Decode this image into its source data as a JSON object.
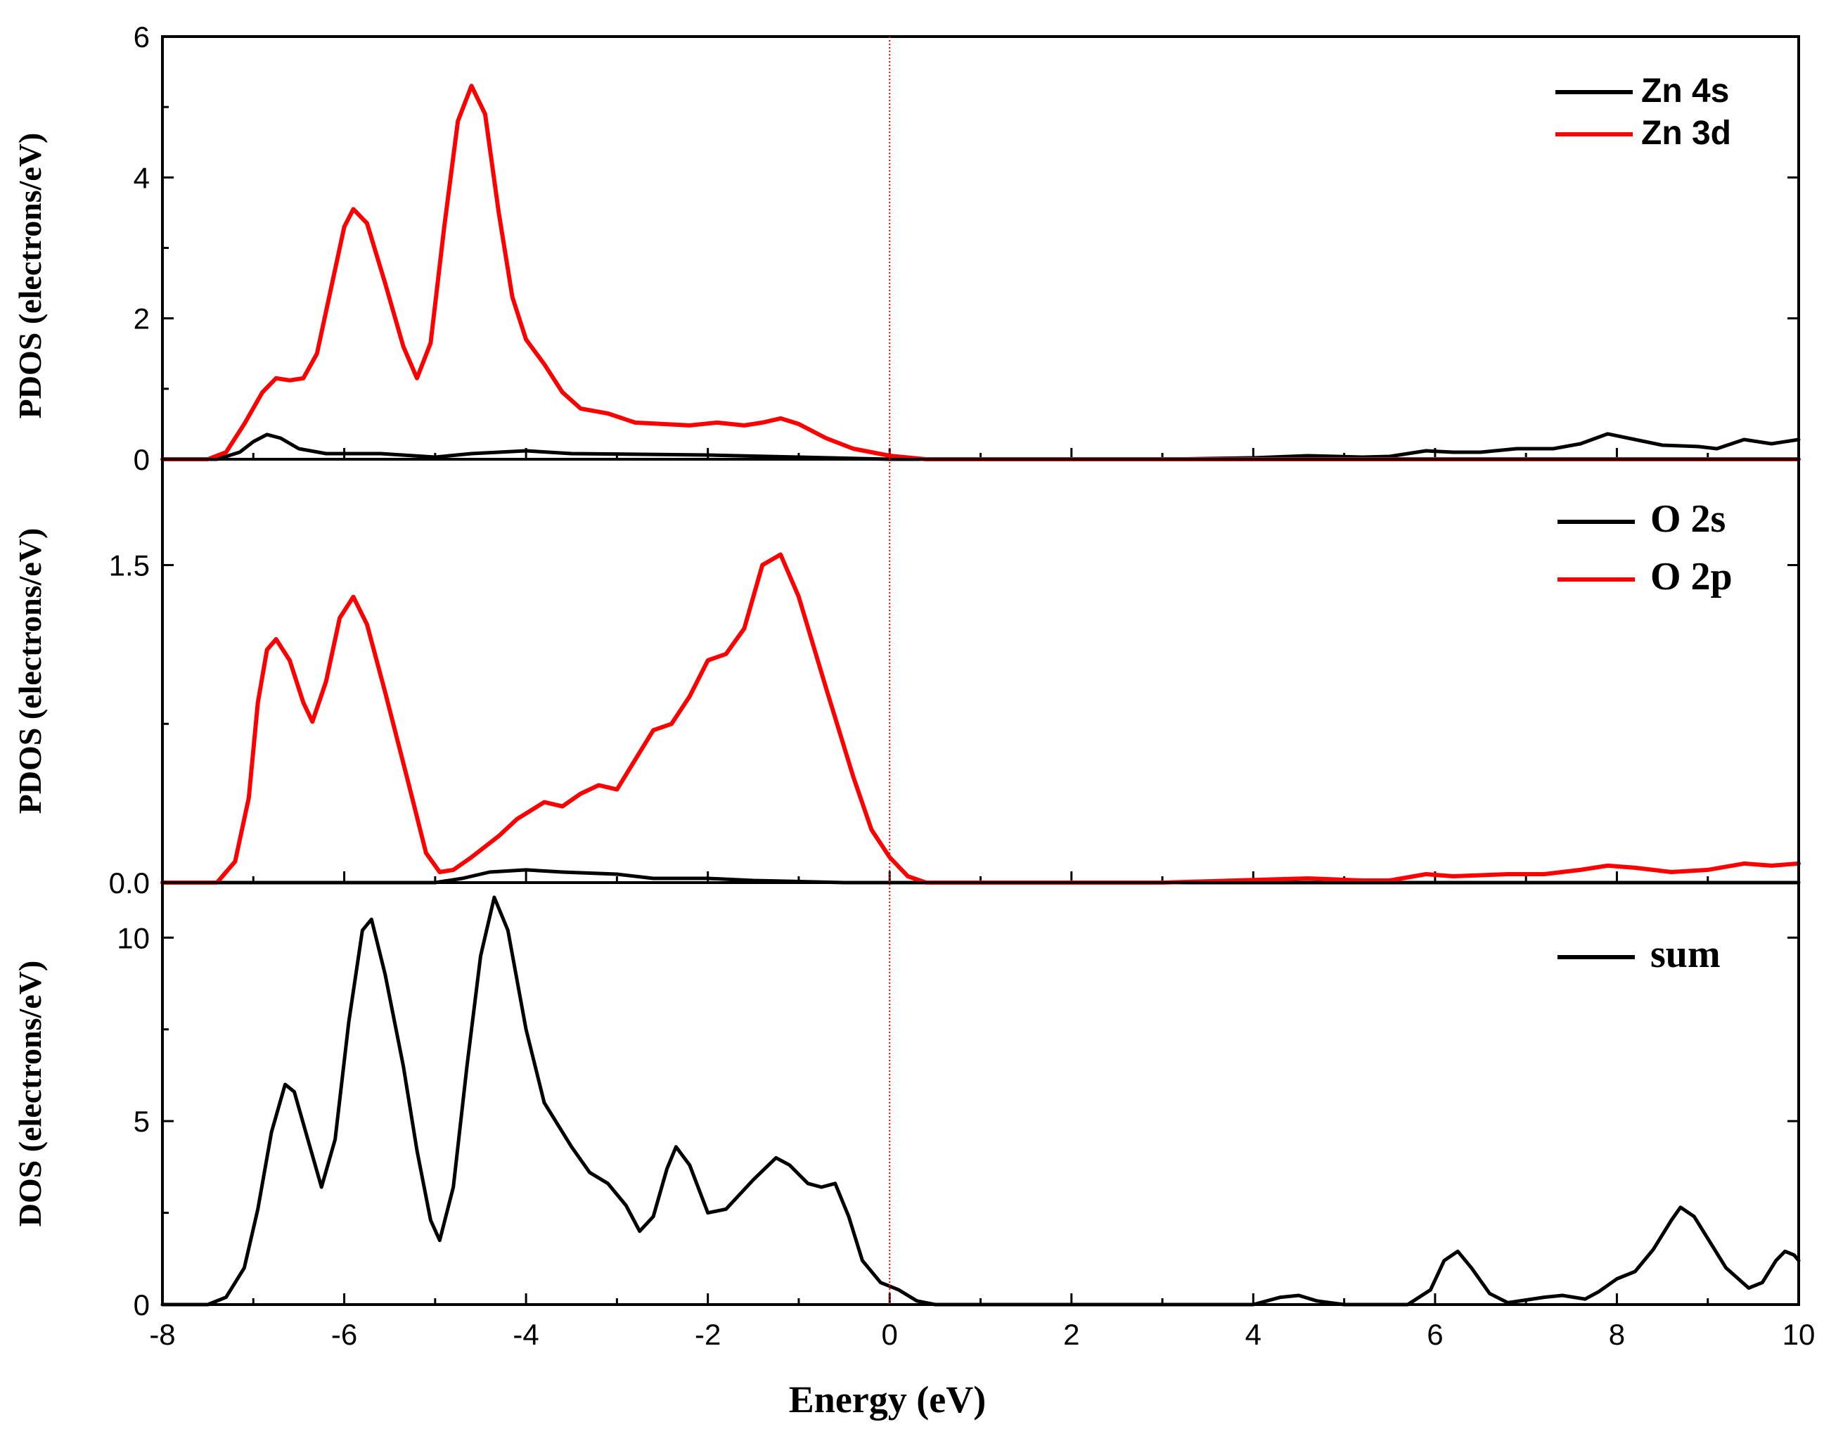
{
  "chart_data": [
    {
      "type": "line",
      "panel": "top",
      "ylabel": "PDOS (electrons/eV)",
      "xlim": [
        -8,
        10
      ],
      "ylim": [
        0,
        6
      ],
      "yticks": [
        0,
        2,
        4,
        6
      ],
      "ytick_labels": [
        "0",
        "2",
        "4",
        "6"
      ],
      "legend_position": "top-right",
      "series": [
        {
          "name": "Zn 4s",
          "color": "#000000",
          "points": [
            [
              -8,
              0
            ],
            [
              -7.4,
              0
            ],
            [
              -7.15,
              0.1
            ],
            [
              -7.0,
              0.25
            ],
            [
              -6.85,
              0.35
            ],
            [
              -6.7,
              0.3
            ],
            [
              -6.5,
              0.15
            ],
            [
              -6.2,
              0.08
            ],
            [
              -5.6,
              0.08
            ],
            [
              -5.0,
              0.03
            ],
            [
              -4.6,
              0.08
            ],
            [
              -4.0,
              0.12
            ],
            [
              -3.5,
              0.08
            ],
            [
              -2.0,
              0.06
            ],
            [
              -1.0,
              0.03
            ],
            [
              0,
              0
            ],
            [
              3.0,
              0
            ],
            [
              4.0,
              0.02
            ],
            [
              4.6,
              0.05
            ],
            [
              5.2,
              0.03
            ],
            [
              5.5,
              0.04
            ],
            [
              5.9,
              0.12
            ],
            [
              6.2,
              0.1
            ],
            [
              6.5,
              0.1
            ],
            [
              6.9,
              0.15
            ],
            [
              7.3,
              0.15
            ],
            [
              7.6,
              0.22
            ],
            [
              7.9,
              0.36
            ],
            [
              8.2,
              0.28
            ],
            [
              8.5,
              0.2
            ],
            [
              8.9,
              0.18
            ],
            [
              9.1,
              0.15
            ],
            [
              9.4,
              0.28
            ],
            [
              9.7,
              0.22
            ],
            [
              10.0,
              0.28
            ]
          ]
        },
        {
          "name": "Zn 3d",
          "color": "#ff0000",
          "points": [
            [
              -8,
              0
            ],
            [
              -7.5,
              0
            ],
            [
              -7.3,
              0.1
            ],
            [
              -7.1,
              0.5
            ],
            [
              -6.9,
              0.95
            ],
            [
              -6.75,
              1.15
            ],
            [
              -6.6,
              1.12
            ],
            [
              -6.45,
              1.15
            ],
            [
              -6.3,
              1.5
            ],
            [
              -6.15,
              2.4
            ],
            [
              -6.0,
              3.3
            ],
            [
              -5.9,
              3.55
            ],
            [
              -5.75,
              3.35
            ],
            [
              -5.55,
              2.5
            ],
            [
              -5.35,
              1.6
            ],
            [
              -5.2,
              1.15
            ],
            [
              -5.05,
              1.65
            ],
            [
              -4.9,
              3.3
            ],
            [
              -4.75,
              4.8
            ],
            [
              -4.6,
              5.3
            ],
            [
              -4.45,
              4.9
            ],
            [
              -4.3,
              3.5
            ],
            [
              -4.15,
              2.3
            ],
            [
              -4.0,
              1.7
            ],
            [
              -3.8,
              1.35
            ],
            [
              -3.6,
              0.95
            ],
            [
              -3.4,
              0.72
            ],
            [
              -3.1,
              0.65
            ],
            [
              -2.8,
              0.52
            ],
            [
              -2.5,
              0.5
            ],
            [
              -2.2,
              0.48
            ],
            [
              -1.9,
              0.52
            ],
            [
              -1.6,
              0.48
            ],
            [
              -1.4,
              0.52
            ],
            [
              -1.2,
              0.58
            ],
            [
              -1.0,
              0.5
            ],
            [
              -0.7,
              0.3
            ],
            [
              -0.4,
              0.15
            ],
            [
              0,
              0.05
            ],
            [
              0.4,
              0
            ],
            [
              10.0,
              0
            ]
          ]
        }
      ]
    },
    {
      "type": "line",
      "panel": "middle",
      "ylabel": "PDOS (electrons/eV)",
      "xlim": [
        -8,
        10
      ],
      "ylim": [
        0,
        2.0
      ],
      "yticks": [
        0.0,
        1.5
      ],
      "ytick_labels": [
        "0.0",
        "1.5"
      ],
      "legend_position": "top-right",
      "series": [
        {
          "name": "O 2s",
          "color": "#000000",
          "points": [
            [
              -8,
              0
            ],
            [
              -5.0,
              0
            ],
            [
              -4.7,
              0.02
            ],
            [
              -4.4,
              0.05
            ],
            [
              -4.0,
              0.06
            ],
            [
              -3.6,
              0.05
            ],
            [
              -3.0,
              0.04
            ],
            [
              -2.6,
              0.02
            ],
            [
              -2.0,
              0.02
            ],
            [
              -1.5,
              0.01
            ],
            [
              -0.5,
              0
            ],
            [
              10.0,
              0
            ]
          ]
        },
        {
          "name": "O 2p",
          "color": "#ff0000",
          "points": [
            [
              -8,
              0
            ],
            [
              -7.4,
              0
            ],
            [
              -7.2,
              0.1
            ],
            [
              -7.05,
              0.4
            ],
            [
              -6.95,
              0.85
            ],
            [
              -6.85,
              1.1
            ],
            [
              -6.75,
              1.15
            ],
            [
              -6.6,
              1.05
            ],
            [
              -6.45,
              0.85
            ],
            [
              -6.35,
              0.76
            ],
            [
              -6.2,
              0.95
            ],
            [
              -6.05,
              1.25
            ],
            [
              -5.9,
              1.35
            ],
            [
              -5.75,
              1.22
            ],
            [
              -5.55,
              0.9
            ],
            [
              -5.3,
              0.48
            ],
            [
              -5.1,
              0.14
            ],
            [
              -4.95,
              0.05
            ],
            [
              -4.8,
              0.06
            ],
            [
              -4.6,
              0.12
            ],
            [
              -4.3,
              0.22
            ],
            [
              -4.1,
              0.3
            ],
            [
              -3.8,
              0.38
            ],
            [
              -3.6,
              0.36
            ],
            [
              -3.4,
              0.42
            ],
            [
              -3.2,
              0.46
            ],
            [
              -3.0,
              0.44
            ],
            [
              -2.8,
              0.58
            ],
            [
              -2.6,
              0.72
            ],
            [
              -2.4,
              0.75
            ],
            [
              -2.2,
              0.88
            ],
            [
              -2.0,
              1.05
            ],
            [
              -1.8,
              1.08
            ],
            [
              -1.6,
              1.2
            ],
            [
              -1.4,
              1.5
            ],
            [
              -1.2,
              1.55
            ],
            [
              -1.0,
              1.35
            ],
            [
              -0.7,
              0.92
            ],
            [
              -0.4,
              0.5
            ],
            [
              -0.2,
              0.25
            ],
            [
              0,
              0.12
            ],
            [
              0.2,
              0.03
            ],
            [
              0.4,
              0
            ],
            [
              3.0,
              0
            ],
            [
              4.6,
              0.02
            ],
            [
              5.2,
              0.01
            ],
            [
              5.5,
              0.01
            ],
            [
              5.9,
              0.04
            ],
            [
              6.2,
              0.03
            ],
            [
              6.8,
              0.04
            ],
            [
              7.2,
              0.04
            ],
            [
              7.6,
              0.06
            ],
            [
              7.9,
              0.08
            ],
            [
              8.2,
              0.07
            ],
            [
              8.6,
              0.05
            ],
            [
              9.0,
              0.06
            ],
            [
              9.4,
              0.09
            ],
            [
              9.7,
              0.08
            ],
            [
              10.0,
              0.09
            ]
          ]
        }
      ]
    },
    {
      "type": "line",
      "panel": "bottom",
      "ylabel": "DOS (electrons/eV)",
      "xlabel": "Energy (eV)",
      "xlim": [
        -8,
        10
      ],
      "ylim": [
        0,
        11.5
      ],
      "xticks": [
        -8,
        -6,
        -4,
        -2,
        0,
        2,
        4,
        6,
        8,
        10
      ],
      "xtick_labels": [
        "-8",
        "-6",
        "-4",
        "-2",
        "0",
        "2",
        "4",
        "6",
        "8",
        "10"
      ],
      "yticks": [
        0,
        5,
        10
      ],
      "ytick_labels": [
        "0",
        "5",
        "10"
      ],
      "legend_position": "top-right",
      "series": [
        {
          "name": "sum",
          "color": "#000000",
          "points": [
            [
              -8,
              0
            ],
            [
              -7.5,
              0
            ],
            [
              -7.3,
              0.2
            ],
            [
              -7.1,
              1.0
            ],
            [
              -6.95,
              2.6
            ],
            [
              -6.8,
              4.7
            ],
            [
              -6.65,
              6.0
            ],
            [
              -6.55,
              5.8
            ],
            [
              -6.4,
              4.5
            ],
            [
              -6.25,
              3.2
            ],
            [
              -6.1,
              4.5
            ],
            [
              -5.95,
              7.7
            ],
            [
              -5.8,
              10.2
            ],
            [
              -5.7,
              10.5
            ],
            [
              -5.55,
              9.0
            ],
            [
              -5.35,
              6.5
            ],
            [
              -5.2,
              4.2
            ],
            [
              -5.05,
              2.3
            ],
            [
              -4.95,
              1.75
            ],
            [
              -4.8,
              3.2
            ],
            [
              -4.65,
              6.5
            ],
            [
              -4.5,
              9.5
            ],
            [
              -4.35,
              11.1
            ],
            [
              -4.2,
              10.2
            ],
            [
              -4.0,
              7.5
            ],
            [
              -3.8,
              5.5
            ],
            [
              -3.5,
              4.3
            ],
            [
              -3.3,
              3.6
            ],
            [
              -3.1,
              3.3
            ],
            [
              -2.9,
              2.7
            ],
            [
              -2.75,
              2.0
            ],
            [
              -2.6,
              2.4
            ],
            [
              -2.45,
              3.7
            ],
            [
              -2.35,
              4.3
            ],
            [
              -2.2,
              3.8
            ],
            [
              -2.0,
              2.5
            ],
            [
              -1.8,
              2.6
            ],
            [
              -1.5,
              3.4
            ],
            [
              -1.25,
              4.0
            ],
            [
              -1.1,
              3.8
            ],
            [
              -0.9,
              3.3
            ],
            [
              -0.75,
              3.2
            ],
            [
              -0.6,
              3.3
            ],
            [
              -0.45,
              2.4
            ],
            [
              -0.3,
              1.2
            ],
            [
              -0.1,
              0.6
            ],
            [
              0.1,
              0.4
            ],
            [
              0.3,
              0.1
            ],
            [
              0.5,
              0
            ],
            [
              4.0,
              0
            ],
            [
              4.3,
              0.2
            ],
            [
              4.5,
              0.25
            ],
            [
              4.7,
              0.1
            ],
            [
              5.0,
              0
            ],
            [
              5.7,
              0
            ],
            [
              5.95,
              0.4
            ],
            [
              6.1,
              1.2
            ],
            [
              6.25,
              1.45
            ],
            [
              6.4,
              1.0
            ],
            [
              6.6,
              0.3
            ],
            [
              6.8,
              0.05
            ],
            [
              7.2,
              0.2
            ],
            [
              7.4,
              0.25
            ],
            [
              7.65,
              0.15
            ],
            [
              7.8,
              0.35
            ],
            [
              8.0,
              0.7
            ],
            [
              8.2,
              0.9
            ],
            [
              8.4,
              1.5
            ],
            [
              8.6,
              2.3
            ],
            [
              8.7,
              2.65
            ],
            [
              8.85,
              2.4
            ],
            [
              9.0,
              1.8
            ],
            [
              9.2,
              1.0
            ],
            [
              9.45,
              0.45
            ],
            [
              9.6,
              0.6
            ],
            [
              9.75,
              1.2
            ],
            [
              9.85,
              1.45
            ],
            [
              9.95,
              1.35
            ],
            [
              10.0,
              1.2
            ]
          ]
        }
      ]
    }
  ]
}
